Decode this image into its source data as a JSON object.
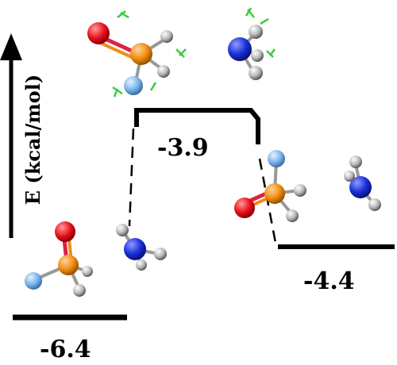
{
  "axis": {
    "label": "E (kcal/mol)"
  },
  "levels": [
    {
      "id": "reactant",
      "value": "-6.4"
    },
    {
      "id": "transition",
      "value": "-3.9"
    },
    {
      "id": "product",
      "value": "-4.4"
    }
  ],
  "colors": {
    "oxygen": "#e8101a",
    "phosphorus": "#f08c14",
    "fluorine": "#7ab4ea",
    "hydrogen": "#b8b8b8",
    "nitrogen": "#1830d8",
    "bond_marker": "#3ccc3c",
    "line": "#000000"
  }
}
